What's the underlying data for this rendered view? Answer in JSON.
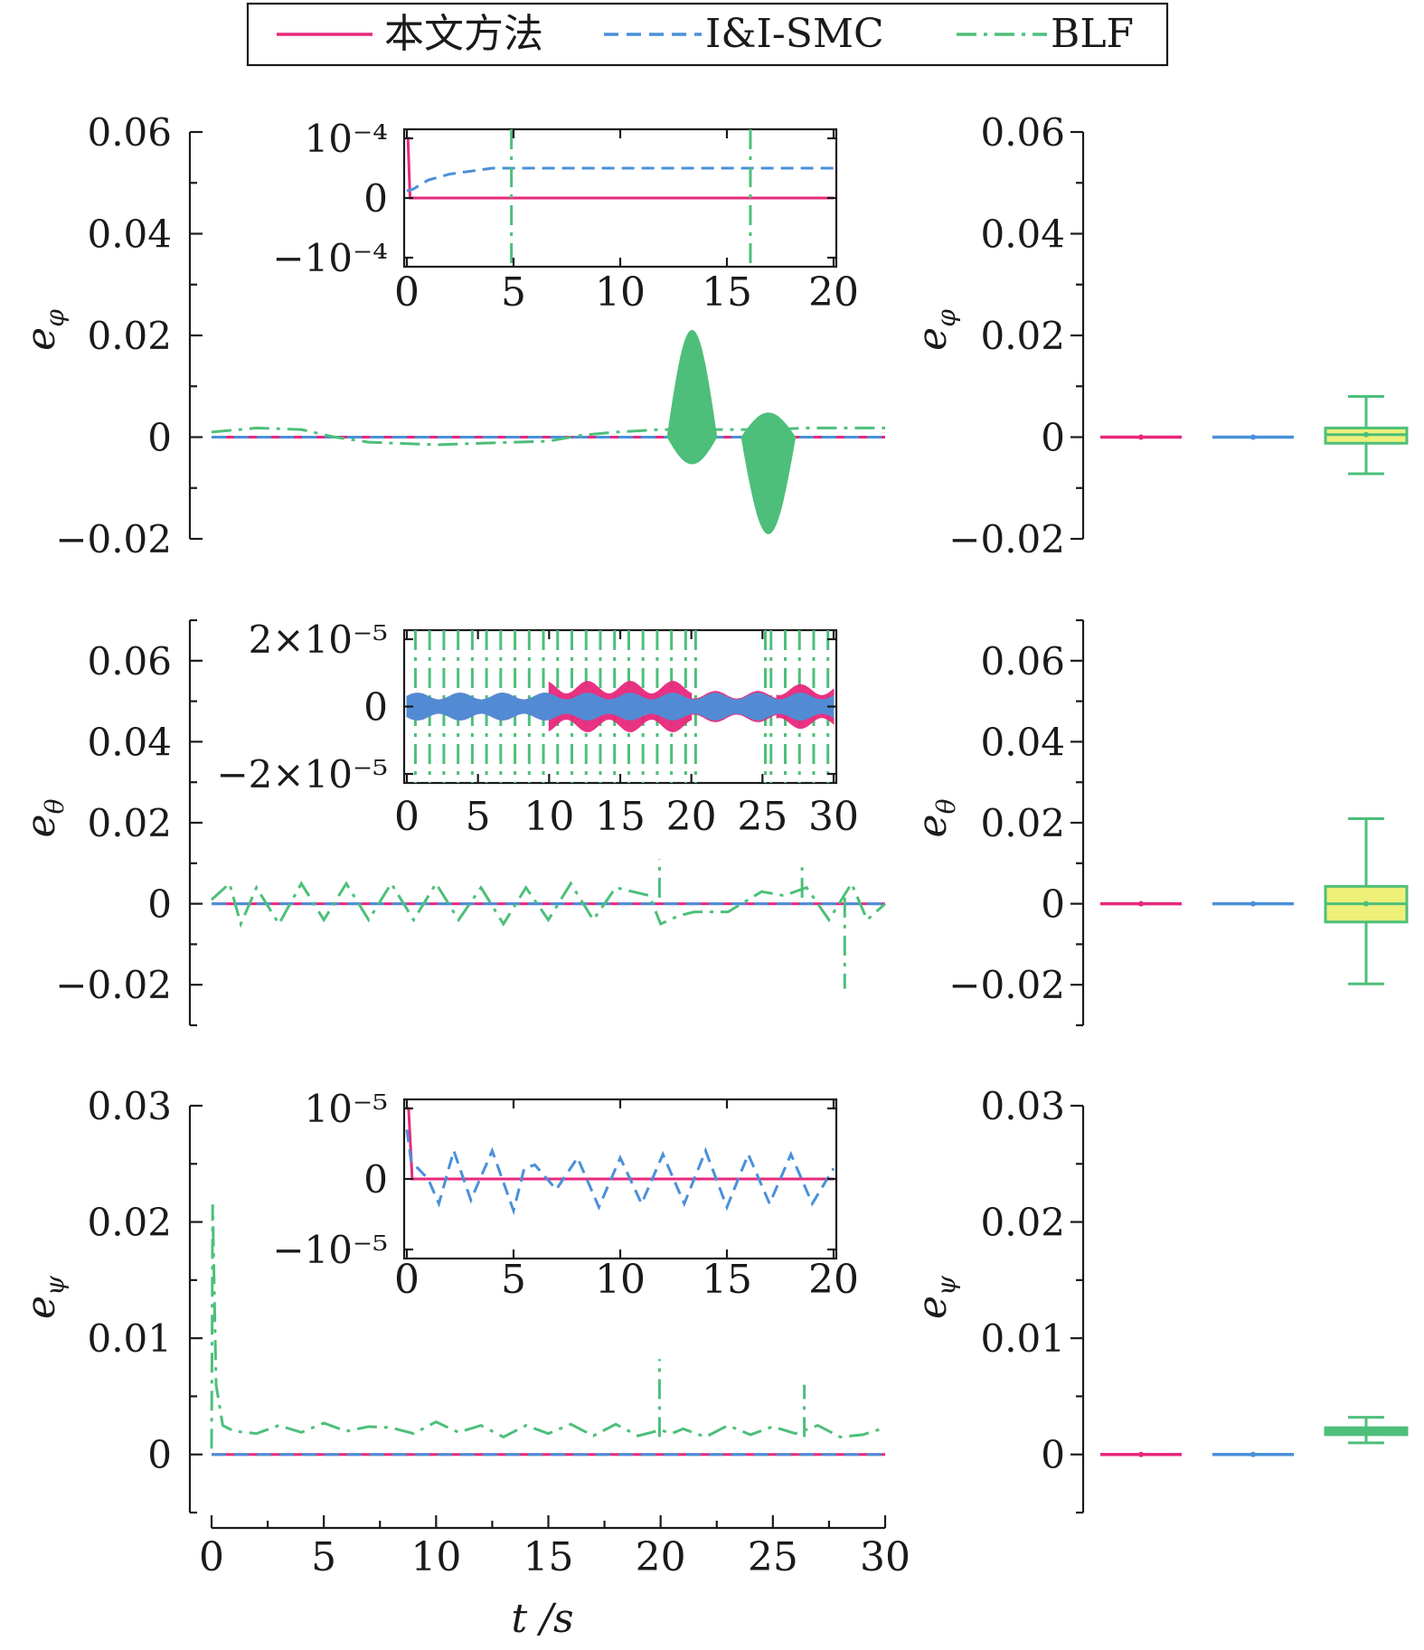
{
  "colors": {
    "proposed": "#e8287c",
    "iisfmc": "#4a90d9",
    "blf": "#4dbf7a",
    "box_fill_yellow": "#eef07a"
  },
  "legend": {
    "items": [
      {
        "label": "本文方法",
        "color": "#e8287c",
        "dash": "solid"
      },
      {
        "label": "I&I-SMC",
        "color": "#4a90d9",
        "dash": "dash"
      },
      {
        "label": "BLF",
        "color": "#4dbf7a",
        "dash": "dashdot"
      }
    ]
  },
  "chart_data": [
    {
      "type": "line",
      "id": "phi",
      "ylabel": "e",
      "ylabel_sub": "φ",
      "xlim": [
        0,
        30
      ],
      "ylim": [
        -0.02,
        0.06
      ],
      "yticks": [
        -0.02,
        0,
        0.02,
        0.04,
        0.06
      ],
      "ytick_labels": [
        "−0.02",
        "0",
        "0.02",
        "0.04",
        "0.06"
      ],
      "series": [
        {
          "name": "本文方法",
          "x": [
            0,
            30
          ],
          "y": [
            0,
            0
          ]
        },
        {
          "name": "I&I-SMC",
          "x": [
            0,
            30
          ],
          "y": [
            0,
            0
          ]
        },
        {
          "name": "BLF",
          "x": [
            0,
            2,
            4,
            5.5,
            7,
            10,
            12,
            15,
            16.5,
            18,
            20,
            24,
            25,
            26.5,
            28,
            30
          ],
          "y": [
            0.001,
            0.0018,
            0.0015,
            0,
            -0.001,
            -0.0015,
            -0.0012,
            -0.0008,
            0.0004,
            0.001,
            0.0015,
            0.0015,
            0.0015,
            0.0018,
            0.0018,
            0.0018
          ]
        }
      ],
      "oscillation_bands": [
        {
          "series": "BLF",
          "x_start": 20.3,
          "x_end": 22.5,
          "peak": 0.021
        },
        {
          "series": "BLF",
          "x_start": 23.6,
          "x_end": 26,
          "peak": -0.019
        }
      ],
      "inset": {
        "xlim": [
          0,
          20
        ],
        "ylim": [
          -0.0001,
          0.0001
        ],
        "xticks": [
          0,
          5,
          10,
          15,
          20
        ],
        "ytick_labels": [
          "10⁻⁴",
          "0",
          "−10⁻⁴"
        ],
        "series": [
          {
            "name": "本文方法",
            "x": [
              0,
              0.05,
              0.15,
              20
            ],
            "y": [
              0.0001,
              0.0001,
              0,
              0
            ]
          },
          {
            "name": "I&I-SMC",
            "x": [
              0,
              0.3,
              1,
              2,
              3,
              4,
              5,
              7,
              10,
              15,
              20
            ],
            "y": [
              1.2e-05,
              1.5e-05,
              3e-05,
              4e-05,
              4.5e-05,
              5e-05,
              5e-05,
              5e-05,
              5e-05,
              5e-05,
              5e-05
            ]
          },
          {
            "name": "BLF",
            "spikes": [
              4.9,
              16.1
            ]
          }
        ]
      },
      "boxplot": {
        "ylim": [
          -0.02,
          0.06
        ],
        "boxes": [
          {
            "name": "本文方法",
            "median": 0,
            "q1": 0,
            "q3": 0,
            "whisker_low": 0,
            "whisker_high": 0
          },
          {
            "name": "I&I-SMC",
            "median": 0,
            "q1": 0,
            "q3": 0,
            "whisker_low": 0,
            "whisker_high": 0
          },
          {
            "name": "BLF",
            "median": 0.0005,
            "q1": -0.0012,
            "q3": 0.0018,
            "whisker_low": -0.0072,
            "whisker_high": 0.008
          }
        ]
      }
    },
    {
      "type": "line",
      "id": "theta",
      "ylabel": "e",
      "ylabel_sub": "θ",
      "xlim": [
        0,
        30
      ],
      "ylim": [
        -0.03,
        0.07
      ],
      "yticks": [
        -0.02,
        0,
        0.02,
        0.04,
        0.06
      ],
      "ytick_labels": [
        "−0.02",
        "0",
        "0.02",
        "0.04",
        "0.06"
      ],
      "series": [
        {
          "name": "本文方法",
          "x": [
            0,
            30
          ],
          "y": [
            0,
            0
          ]
        },
        {
          "name": "I&I-SMC",
          "x": [
            0,
            30
          ],
          "y": [
            0,
            0
          ]
        },
        {
          "name": "BLF",
          "x": [
            0,
            0.8,
            1.3,
            2,
            3,
            4,
            5,
            6,
            7,
            8,
            9,
            10,
            11,
            12,
            13,
            14,
            15,
            16,
            17,
            18,
            19.5,
            20,
            20.8,
            21.5,
            23,
            24.5,
            25.5,
            26.5,
            27.5,
            28.5,
            29.2,
            30
          ],
          "y": [
            0.001,
            0.005,
            -0.005,
            0.004,
            -0.005,
            0.005,
            -0.004,
            0.005,
            -0.004,
            0.005,
            -0.004,
            0.005,
            -0.004,
            0.004,
            -0.005,
            0.004,
            -0.004,
            0.005,
            -0.004,
            0.004,
            0.002,
            -0.005,
            -0.003,
            -0.002,
            -0.002,
            0.003,
            0.002,
            0.004,
            -0.004,
            0.005,
            -0.004,
            0
          ]
        },
        {
          "name": "BLF",
          "spikes": [
            19.95,
            26.3,
            28.2
          ],
          "spike_peaks": [
            0.011,
            0.009,
            -0.021
          ]
        }
      ],
      "inset": {
        "xlim": [
          0,
          30
        ],
        "ylim": [
          -2e-05,
          2e-05
        ],
        "xticks": [
          0,
          5,
          10,
          15,
          20,
          25,
          30
        ],
        "ytick_labels": [
          "2×10⁻⁵",
          "0",
          "−2×10⁻⁵"
        ],
        "bands": [
          {
            "series": "本文方法",
            "x_start": 0,
            "x_end": 10,
            "amplitude": 4e-06
          },
          {
            "series": "本文方法",
            "x_start": 10,
            "x_end": 20,
            "amplitude": 7.5e-06
          },
          {
            "series": "本文方法",
            "x_start": 20,
            "x_end": 26,
            "amplitude": 4.5e-06
          },
          {
            "series": "本文方法",
            "x_start": 26,
            "x_end": 30,
            "amplitude": 6.5e-06
          },
          {
            "series": "I&I-SMC",
            "x_start": 0,
            "x_end": 30,
            "amplitude": 4e-06
          }
        ],
        "blf_dashdot_spacing": 1
      },
      "boxplot": {
        "ylim": [
          -0.03,
          0.07
        ],
        "boxes": [
          {
            "name": "本文方法",
            "median": 0,
            "q1": 0,
            "q3": 0,
            "whisker_low": 0,
            "whisker_high": 0
          },
          {
            "name": "I&I-SMC",
            "median": 0,
            "q1": 0,
            "q3": 0,
            "whisker_low": 0,
            "whisker_high": 0
          },
          {
            "name": "BLF",
            "median": 0,
            "q1": -0.0045,
            "q3": 0.0043,
            "whisker_low": -0.0198,
            "whisker_high": 0.021
          }
        ]
      }
    },
    {
      "type": "line",
      "id": "psi",
      "ylabel": "e",
      "ylabel_sub": "ψ",
      "xlabel": "t /s",
      "xlim": [
        0,
        30
      ],
      "ylim": [
        -0.005,
        0.03
      ],
      "xticks": [
        0,
        5,
        10,
        15,
        20,
        25,
        30
      ],
      "yticks": [
        0,
        0.01,
        0.02,
        0.03
      ],
      "ytick_labels": [
        "0",
        "0.01",
        "0.02",
        "0.03"
      ],
      "series": [
        {
          "name": "本文方法",
          "x": [
            0,
            30
          ],
          "y": [
            0,
            0
          ]
        },
        {
          "name": "I&I-SMC",
          "x": [
            0,
            30
          ],
          "y": [
            0,
            0
          ]
        },
        {
          "name": "BLF",
          "x": [
            0,
            0.05,
            0.2,
            0.5,
            1,
            2,
            3,
            4,
            5,
            6,
            7,
            8,
            9,
            10,
            11,
            12,
            13,
            14,
            15,
            16,
            17,
            18,
            19,
            20,
            20.5,
            21,
            22,
            23,
            24,
            25,
            26,
            27,
            28,
            29,
            30
          ],
          "y": [
            0.0005,
            0.0215,
            0.006,
            0.0025,
            0.002,
            0.0018,
            0.0025,
            0.0019,
            0.0027,
            0.002,
            0.0024,
            0.0023,
            0.0018,
            0.0028,
            0.0019,
            0.0025,
            0.0015,
            0.0025,
            0.0018,
            0.0026,
            0.0016,
            0.0026,
            0.0016,
            0.0021,
            0.0018,
            0.0022,
            0.0015,
            0.0025,
            0.0017,
            0.0024,
            0.0018,
            0.0025,
            0.0015,
            0.0017,
            0.0023
          ]
        },
        {
          "name": "BLF",
          "spikes": [
            19.95,
            26.4
          ],
          "spike_peaks": [
            0.0082,
            0.006
          ]
        }
      ],
      "inset": {
        "xlim": [
          0,
          20
        ],
        "ylim": [
          -1e-05,
          1e-05
        ],
        "xticks": [
          0,
          5,
          10,
          15,
          20
        ],
        "ytick_labels": [
          "10⁻⁵",
          "0",
          "−10⁻⁵"
        ],
        "series": [
          {
            "name": "本文方法",
            "x": [
              0,
              0.08,
              0.25,
              20
            ],
            "y": [
              1e-05,
              1e-05,
              0,
              0
            ]
          },
          {
            "name": "I&I-SMC",
            "x": [
              0,
              0.2,
              1,
              1.5,
              2.2,
              3,
              4,
              5,
              5.5,
              6,
              7,
              8,
              9,
              10,
              11,
              12,
              13,
              14,
              15,
              16,
              17,
              18,
              19,
              20
            ],
            "y": [
              7e-06,
              2.5e-06,
              0,
              -3.5e-06,
              4e-06,
              -3e-06,
              4e-06,
              -4.5e-06,
              1.5e-06,
              2e-06,
              -1.5e-06,
              3e-06,
              -4e-06,
              3e-06,
              -3.5e-06,
              3.5e-06,
              -3.5e-06,
              4e-06,
              -4e-06,
              3.5e-06,
              -3.5e-06,
              3.5e-06,
              -3.5e-06,
              1.5e-06
            ]
          }
        ]
      },
      "boxplot": {
        "ylim": [
          -0.005,
          0.03
        ],
        "boxes": [
          {
            "name": "本文方法",
            "median": 0,
            "q1": 0,
            "q3": 0,
            "whisker_low": 0,
            "whisker_high": 0
          },
          {
            "name": "I&I-SMC",
            "median": 0,
            "q1": 0,
            "q3": 0,
            "whisker_low": 0,
            "whisker_high": 0
          },
          {
            "name": "BLF",
            "median": 0.002,
            "q1": 0.0017,
            "q3": 0.0023,
            "whisker_low": 0.001,
            "whisker_high": 0.0032
          }
        ]
      }
    }
  ]
}
